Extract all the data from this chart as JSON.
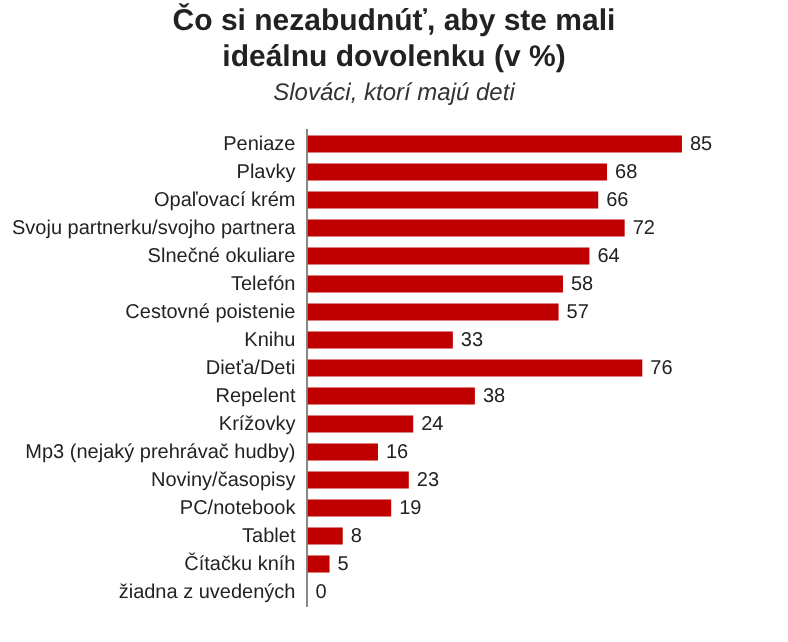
{
  "chart_data": {
    "type": "bar",
    "orientation": "horizontal",
    "title": "Čo si nezabudnúť, aby ste mali ideálnu dovolenku (v %)",
    "subtitle": "Slováci, ktorí majú deti",
    "categories": [
      "Peniaze",
      "Plavky",
      "Opaľovací krém",
      "Svoju partnerku/svojho partnera",
      "Slnečné okuliare",
      "Telefón",
      "Cestovné poistenie",
      "Knihu",
      "Dieťa/Deti",
      "Repelent",
      "Krížovky",
      "Mp3 (nejaký prehrávač hudby)",
      "Noviny/časopisy",
      "PC/notebook",
      "Tablet",
      "Čítačku kníh",
      "žiadna z uvedených"
    ],
    "values": [
      85,
      68,
      66,
      72,
      64,
      58,
      57,
      33,
      76,
      38,
      24,
      16,
      23,
      19,
      8,
      5,
      0
    ],
    "color": "#c00000",
    "data_labels": true,
    "grid": false,
    "legend": false
  }
}
